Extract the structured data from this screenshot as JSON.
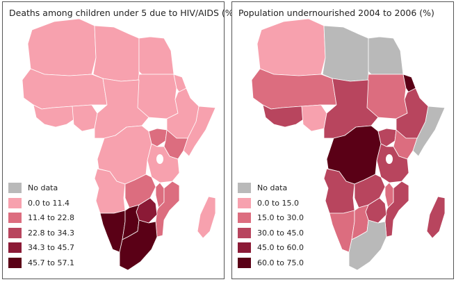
{
  "colors": {
    "no_data": "#b9b9b9",
    "c1": "#f7a1ae",
    "c2": "#dc6d7f",
    "c3": "#b8455e",
    "c4": "#8b1a36",
    "c5": "#5a0016",
    "border": "#ffffff"
  },
  "maps": [
    {
      "title": "Deaths among children under 5 due to HIV/AIDS (%)",
      "legend": [
        {
          "label": "No data",
          "color": "#b9b9b9"
        },
        {
          "label": "0.0 to 11.4",
          "color": "#f7a1ae"
        },
        {
          "label": "11.4 to 22.8",
          "color": "#dc6d7f"
        },
        {
          "label": "22.8 to 34.3",
          "color": "#b8455e"
        },
        {
          "label": "34.3 to 45.7",
          "color": "#8b1a36"
        },
        {
          "label": "45.7 to 57.1",
          "color": "#5a0016"
        }
      ],
      "regions": {
        "north": "#f7a1ae",
        "libya": "#f7a1ae",
        "egypt": "#f7a1ae",
        "sahel_west": "#f7a1ae",
        "west_coast": "#f7a1ae",
        "nigeria": "#f7a1ae",
        "sudan": "#f7a1ae",
        "eritrea": "#f7a1ae",
        "horn": "#f7a1ae",
        "ethiopia": "#f7a1ae",
        "central": "#f7a1ae",
        "drc": "#f7a1ae",
        "east_lakes": "#dc6d7f",
        "kenya": "#dc6d7f",
        "tanzania": "#f7a1ae",
        "angola": "#f7a1ae",
        "zambia": "#dc6d7f",
        "malawi": "#dc6d7f",
        "mozambique": "#dc6d7f",
        "zimbabwe": "#8b1a36",
        "south_west": "#5a0016",
        "botswana": "#5a0016",
        "south_africa": "#5a0016",
        "madagascar": "#f7a1ae"
      }
    },
    {
      "title": "Population undernourished 2004 to 2006 (%)",
      "legend": [
        {
          "label": "No data",
          "color": "#b9b9b9"
        },
        {
          "label": "0.0 to 15.0",
          "color": "#f7a1ae"
        },
        {
          "label": "15.0 to 30.0",
          "color": "#dc6d7f"
        },
        {
          "label": "30.0 to 45.0",
          "color": "#b8455e"
        },
        {
          "label": "45.0 to 60.0",
          "color": "#8b1a36"
        },
        {
          "label": "60.0 to 75.0",
          "color": "#5a0016"
        }
      ],
      "regions": {
        "north": "#f7a1ae",
        "libya": "#b9b9b9",
        "egypt": "#b9b9b9",
        "sahel_west": "#dc6d7f",
        "west_coast": "#b8455e",
        "nigeria": "#f7a1ae",
        "sudan": "#dc6d7f",
        "eritrea": "#5a0016",
        "horn": "#b9b9b9",
        "ethiopia": "#b8455e",
        "central": "#b8455e",
        "drc": "#5a0016",
        "east_lakes": "#b8455e",
        "kenya": "#dc6d7f",
        "tanzania": "#b8455e",
        "angola": "#b8455e",
        "zambia": "#b8455e",
        "malawi": "#dc6d7f",
        "mozambique": "#b8455e",
        "zimbabwe": "#b8455e",
        "south_west": "#dc6d7f",
        "botswana": "#dc6d7f",
        "south_africa": "#b9b9b9",
        "madagascar": "#b8455e"
      }
    }
  ]
}
